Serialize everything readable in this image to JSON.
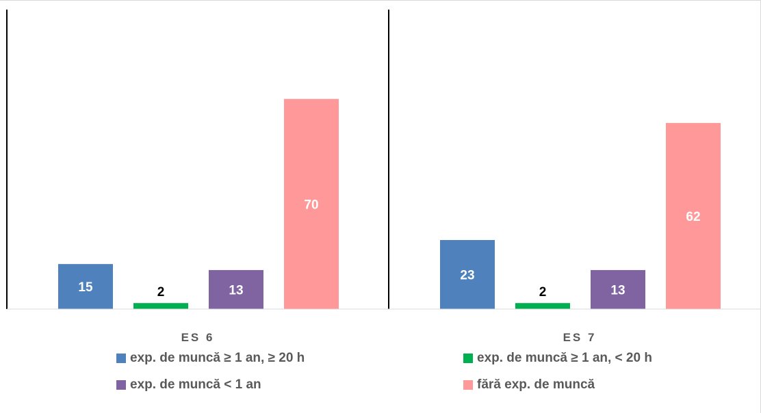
{
  "chart_data": {
    "type": "bar",
    "categories": [
      "ES 6",
      "ES 7"
    ],
    "series": [
      {
        "name": "exp. de muncă ≥ 1 an, ≥ 20 h",
        "color": "#4f81bd",
        "label_color": "#ffffff",
        "values": [
          15,
          23
        ]
      },
      {
        "name": "exp. de muncă ≥ 1 an, < 20 h",
        "color": "#00b050",
        "label_color": "#000000",
        "values": [
          2,
          2
        ]
      },
      {
        "name": "exp. de muncă < 1 an",
        "color": "#8064a2",
        "label_color": "#ffffff",
        "values": [
          13,
          13
        ]
      },
      {
        "name": "fără exp. de muncă",
        "color": "#ff9999",
        "label_color": "#ffffff",
        "values": [
          70,
          62
        ]
      }
    ],
    "title": "",
    "xlabel": "",
    "ylabel": "",
    "ylim": [
      0,
      100
    ],
    "grid": false,
    "legend_position": "bottom"
  }
}
